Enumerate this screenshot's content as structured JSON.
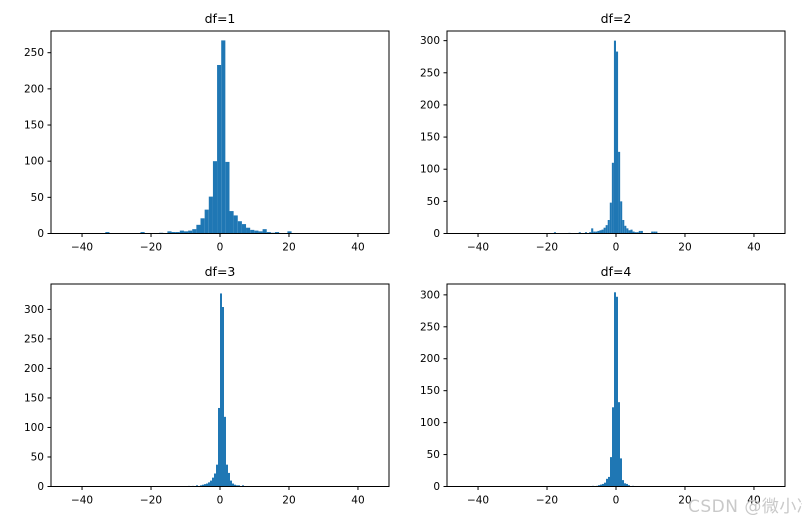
{
  "figure": {
    "background": "#ffffff",
    "bar_color": "#1f77b4",
    "spine_color": "#000000",
    "text_color": "#000000"
  },
  "watermark": {
    "text": "CSDN @微小冷",
    "color": "#c9c9c9"
  },
  "chart_data": [
    {
      "type": "bar",
      "subtype": "histogram",
      "title": "df=1",
      "xlabel": "",
      "ylabel": "",
      "grid": false,
      "legend": null,
      "bar_color": "#1f77b4",
      "xlim": [
        -49,
        49
      ],
      "ylim": [
        0,
        280
      ],
      "x_tick_values": [
        -40,
        -20,
        0,
        20,
        40
      ],
      "x_tick_labels": [
        "−40",
        "−20",
        "0",
        "20",
        "40"
      ],
      "y_tick_values": [
        0,
        50,
        100,
        150,
        200,
        250
      ],
      "y_tick_labels": [
        "0",
        "50",
        "100",
        "150",
        "200",
        "250"
      ],
      "bin_width": 1.2,
      "bars": [
        [
          -32.65,
          2
        ],
        [
          -22.45,
          2
        ],
        [
          -17.05,
          1
        ],
        [
          -14.65,
          3
        ],
        [
          -13.45,
          2
        ],
        [
          -12.25,
          2
        ],
        [
          -11.05,
          4
        ],
        [
          -9.85,
          3
        ],
        [
          -8.65,
          4
        ],
        [
          -7.45,
          6
        ],
        [
          -6.25,
          12
        ],
        [
          -5.05,
          21
        ],
        [
          -3.85,
          33
        ],
        [
          -2.65,
          51
        ],
        [
          -1.45,
          100
        ],
        [
          -0.25,
          233
        ],
        [
          0.95,
          267
        ],
        [
          2.15,
          99
        ],
        [
          3.35,
          31
        ],
        [
          4.55,
          25
        ],
        [
          5.75,
          17
        ],
        [
          6.95,
          13
        ],
        [
          8.15,
          8
        ],
        [
          9.35,
          5
        ],
        [
          10.55,
          4
        ],
        [
          11.75,
          3
        ],
        [
          12.95,
          6
        ],
        [
          14.15,
          2
        ],
        [
          15.35,
          1
        ],
        [
          16.55,
          2
        ],
        [
          20.15,
          3
        ]
      ]
    },
    {
      "type": "bar",
      "subtype": "histogram",
      "title": "df=2",
      "xlabel": "",
      "ylabel": "",
      "grid": false,
      "legend": null,
      "bar_color": "#1f77b4",
      "xlim": [
        -49,
        49
      ],
      "ylim": [
        0,
        315
      ],
      "x_tick_values": [
        -40,
        -20,
        0,
        20,
        40
      ],
      "x_tick_labels": [
        "−40",
        "−20",
        "0",
        "20",
        "40"
      ],
      "y_tick_values": [
        0,
        50,
        100,
        150,
        200,
        250,
        300
      ],
      "y_tick_labels": [
        "0",
        "50",
        "100",
        "150",
        "200",
        "250",
        "300"
      ],
      "bin_width": 0.6,
      "bars": [
        [
          -17.7,
          2
        ],
        [
          -13.5,
          1
        ],
        [
          -10.5,
          2
        ],
        [
          -8.7,
          2
        ],
        [
          -7.5,
          2
        ],
        [
          -6.9,
          8
        ],
        [
          -6.3,
          3
        ],
        [
          -5.7,
          3
        ],
        [
          -5.1,
          4
        ],
        [
          -4.5,
          5
        ],
        [
          -3.9,
          6
        ],
        [
          -3.3,
          9
        ],
        [
          -2.7,
          13
        ],
        [
          -2.1,
          21
        ],
        [
          -1.5,
          48
        ],
        [
          -0.9,
          110
        ],
        [
          -0.3,
          300
        ],
        [
          0.3,
          283
        ],
        [
          0.9,
          127
        ],
        [
          1.5,
          50
        ],
        [
          2.1,
          21
        ],
        [
          2.7,
          12
        ],
        [
          3.3,
          8
        ],
        [
          3.9,
          5
        ],
        [
          4.5,
          6
        ],
        [
          5.1,
          3
        ],
        [
          5.7,
          2
        ],
        [
          6.3,
          2
        ],
        [
          6.9,
          4
        ],
        [
          7.5,
          4
        ],
        [
          10.5,
          3
        ],
        [
          11.1,
          3
        ],
        [
          11.7,
          3
        ]
      ]
    },
    {
      "type": "bar",
      "subtype": "histogram",
      "title": "df=3",
      "xlabel": "",
      "ylabel": "",
      "grid": false,
      "legend": null,
      "bar_color": "#1f77b4",
      "xlim": [
        -49,
        49
      ],
      "ylim": [
        0,
        343
      ],
      "x_tick_values": [
        -40,
        -20,
        0,
        20,
        40
      ],
      "x_tick_labels": [
        "−40",
        "−20",
        "0",
        "20",
        "40"
      ],
      "y_tick_values": [
        0,
        50,
        100,
        150,
        200,
        250,
        300
      ],
      "y_tick_labels": [
        "0",
        "50",
        "100",
        "150",
        "200",
        "250",
        "300"
      ],
      "bin_width": 0.58,
      "bars": [
        [
          -8.99,
          1
        ],
        [
          -7.83,
          1
        ],
        [
          -6.67,
          2
        ],
        [
          -5.51,
          2
        ],
        [
          -4.93,
          3
        ],
        [
          -4.35,
          4
        ],
        [
          -3.77,
          5
        ],
        [
          -3.19,
          7
        ],
        [
          -2.61,
          10
        ],
        [
          -2.03,
          15
        ],
        [
          -1.45,
          22
        ],
        [
          -0.87,
          37
        ],
        [
          -0.29,
          133
        ],
        [
          0.29,
          327
        ],
        [
          0.87,
          304
        ],
        [
          1.45,
          118
        ],
        [
          2.03,
          37
        ],
        [
          2.61,
          23
        ],
        [
          3.19,
          10
        ],
        [
          3.77,
          5
        ],
        [
          4.35,
          3
        ],
        [
          4.93,
          2
        ],
        [
          5.51,
          2
        ],
        [
          6.67,
          2
        ]
      ]
    },
    {
      "type": "bar",
      "subtype": "histogram",
      "title": "df=4",
      "xlabel": "",
      "ylabel": "",
      "grid": false,
      "legend": null,
      "bar_color": "#1f77b4",
      "xlim": [
        -49,
        49
      ],
      "ylim": [
        0,
        317
      ],
      "x_tick_values": [
        -40,
        -20,
        0,
        20,
        40
      ],
      "x_tick_labels": [
        "−40",
        "−20",
        "0",
        "20",
        "40"
      ],
      "y_tick_values": [
        0,
        50,
        100,
        150,
        200,
        250,
        300
      ],
      "y_tick_labels": [
        "0",
        "50",
        "100",
        "150",
        "200",
        "250",
        "300"
      ],
      "bin_width": 0.58,
      "bars": [
        [
          -6.67,
          1
        ],
        [
          -5.51,
          1
        ],
        [
          -4.93,
          2
        ],
        [
          -4.35,
          3
        ],
        [
          -3.77,
          4
        ],
        [
          -3.19,
          6
        ],
        [
          -2.61,
          12
        ],
        [
          -2.03,
          15
        ],
        [
          -1.45,
          46
        ],
        [
          -0.87,
          124
        ],
        [
          -0.29,
          304
        ],
        [
          0.29,
          297
        ],
        [
          0.87,
          132
        ],
        [
          1.45,
          44
        ],
        [
          2.03,
          10
        ],
        [
          2.61,
          5
        ],
        [
          3.19,
          4
        ],
        [
          3.77,
          2
        ],
        [
          4.93,
          1
        ]
      ]
    }
  ]
}
